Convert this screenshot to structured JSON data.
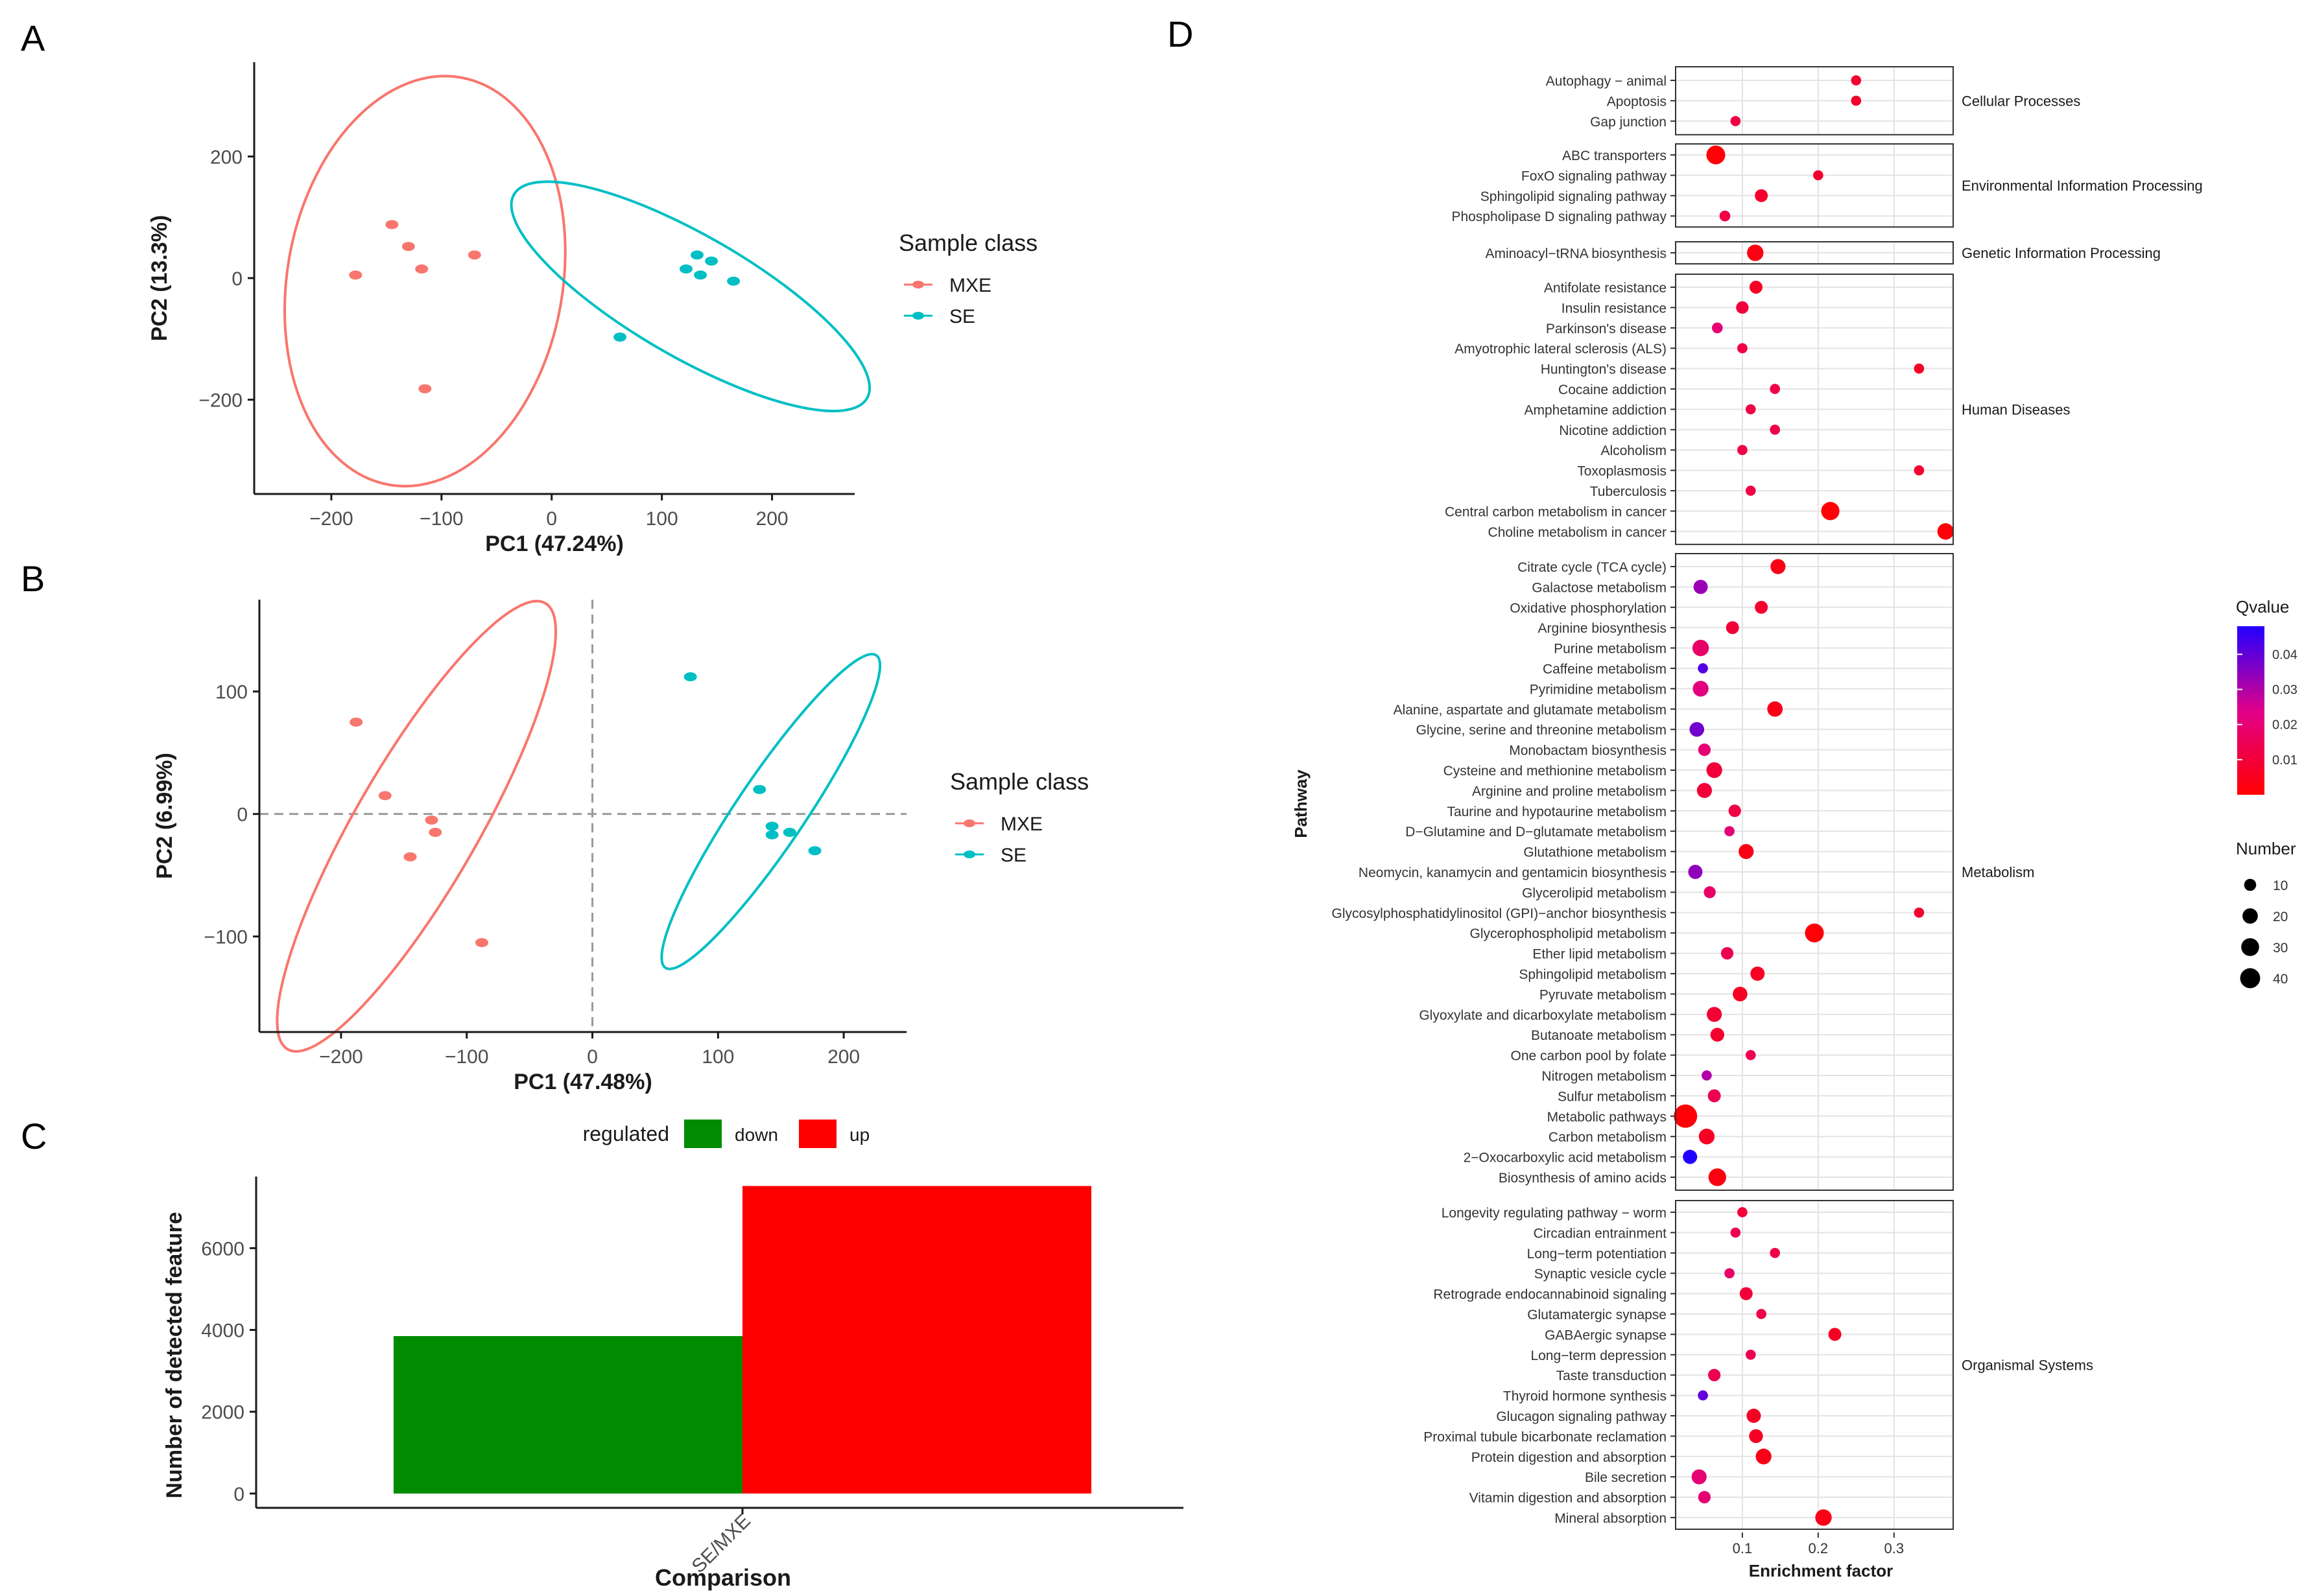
{
  "panels": {
    "A": {
      "label": "A"
    },
    "B": {
      "label": "B"
    },
    "C": {
      "label": "C"
    },
    "D": {
      "label": "D"
    }
  },
  "chart_data": [
    {
      "panel": "A",
      "type": "scatter",
      "xlabel": "PC1 (47.24%)",
      "ylabel": "PC2 (13.3%)",
      "xlim": [
        -270,
        275
      ],
      "ylim": [
        -355,
        355
      ],
      "xticks": [
        -200,
        -100,
        0,
        100,
        200
      ],
      "xtick_labels": [
        "−200",
        "−100",
        "0",
        "100",
        "200"
      ],
      "yticks": [
        -200,
        0,
        200
      ],
      "ytick_labels": [
        "−200",
        "0",
        "200"
      ],
      "legend": {
        "title": "Sample class",
        "position": "right"
      },
      "series": [
        {
          "name": "MXE",
          "color": "#F8766D",
          "points": [
            [
              -145,
              88
            ],
            [
              -130,
              52
            ],
            [
              -118,
              15
            ],
            [
              -178,
              5
            ],
            [
              -70,
              38
            ],
            [
              -115,
              -182
            ]
          ],
          "ellipse": {
            "center": [
              -115,
              -5
            ],
            "rx": 125,
            "ry": 340,
            "angle": 170
          }
        },
        {
          "name": "SE",
          "color": "#00BFC4",
          "points": [
            [
              132,
              38
            ],
            [
              145,
              28
            ],
            [
              122,
              15
            ],
            [
              135,
              5
            ],
            [
              165,
              -5
            ],
            [
              62,
              -97
            ]
          ],
          "ellipse": {
            "center": [
              126,
              -30
            ],
            "rx": 185,
            "ry": 100,
            "angle": -30
          }
        }
      ]
    },
    {
      "panel": "B",
      "type": "scatter",
      "xlabel": "PC1 (47.48%)",
      "ylabel": "PC2 (6.99%)",
      "xlim": [
        -265,
        250
      ],
      "ylim": [
        -178,
        175
      ],
      "xticks": [
        -200,
        -100,
        0,
        100,
        200
      ],
      "xtick_labels": [
        "−200",
        "−100",
        "0",
        "100",
        "200"
      ],
      "yticks": [
        -100,
        0,
        100
      ],
      "ytick_labels": [
        "−100",
        "0",
        "100"
      ],
      "reference_lines": {
        "x": 0,
        "y": 0,
        "style": "dashed"
      },
      "legend": {
        "title": "Sample class",
        "position": "right"
      },
      "series": [
        {
          "name": "MXE",
          "color": "#F8766D",
          "points": [
            [
              -188,
              75
            ],
            [
              -165,
              15
            ],
            [
              -128,
              -5
            ],
            [
              -125,
              -15
            ],
            [
              -145,
              -35
            ],
            [
              -88,
              -105
            ]
          ],
          "ellipse": {
            "center": [
              -140,
              -10
            ],
            "rx": 205,
            "ry": 50,
            "angle": 60
          }
        },
        {
          "name": "SE",
          "color": "#00BFC4",
          "points": [
            [
              78,
              112
            ],
            [
              133,
              20
            ],
            [
              143,
              -10
            ],
            [
              157,
              -15
            ],
            [
              143,
              -17
            ],
            [
              177,
              -30
            ]
          ],
          "ellipse": {
            "center": [
              142,
              2
            ],
            "rx": 150,
            "ry": 28,
            "angle": 56
          }
        }
      ]
    },
    {
      "panel": "C",
      "type": "bar",
      "xlabel": "Comparison",
      "ylabel": "Number of detected feature",
      "categories": [
        "SE/MXE"
      ],
      "ylim": [
        -350,
        7750
      ],
      "yticks": [
        0,
        2000,
        4000,
        6000
      ],
      "legend": {
        "title": "regulated",
        "position": "top"
      },
      "series": [
        {
          "name": "down",
          "color": "#008B00",
          "values": [
            3850
          ]
        },
        {
          "name": "up",
          "color": "#FF0000",
          "values": [
            7520
          ]
        }
      ]
    },
    {
      "panel": "D",
      "type": "scatter",
      "xlabel": "Enrichment factor",
      "ylabel": "Pathway",
      "xlim": [
        0.012,
        0.378
      ],
      "xticks": [
        0.1,
        0.2,
        0.3
      ],
      "xtick_labels": [
        "0.1",
        "0.2",
        "0.3"
      ],
      "color_legend": {
        "title": "Qvalue",
        "ticks": [
          "0.04",
          "0.03",
          "0.02",
          "0.01"
        ],
        "tick_values": [
          0.04,
          0.03,
          0.02,
          0.01
        ],
        "low_color": "#FF0000",
        "mid_color": "#E0008A",
        "high_color": "#2200FF"
      },
      "size_legend": {
        "title": "Number",
        "values": [
          10,
          20,
          30,
          40
        ]
      },
      "groups": [
        {
          "name": "Cellular Processes",
          "pathways": [
            {
              "name": "Autophagy − animal",
              "x": 0.25,
              "number": 4,
              "q": 0.008
            },
            {
              "name": "Apoptosis",
              "x": 0.25,
              "number": 4,
              "q": 0.008
            },
            {
              "name": "Gap junction",
              "x": 0.091,
              "number": 4,
              "q": 0.012
            }
          ]
        },
        {
          "name": "Environmental Information Processing",
          "pathways": [
            {
              "name": "ABC transporters",
              "x": 0.065,
              "number": 26,
              "q": 0.001
            },
            {
              "name": "FoxO signaling pathway",
              "x": 0.2,
              "number": 4,
              "q": 0.008
            },
            {
              "name": "Sphingolipid signaling pathway",
              "x": 0.125,
              "number": 9,
              "q": 0.008
            },
            {
              "name": "Phospholipase D signaling pathway",
              "x": 0.077,
              "number": 5,
              "q": 0.012
            }
          ]
        },
        {
          "name": "Genetic Information Processing",
          "pathways": [
            {
              "name": "Aminoacyl−tRNA biosynthesis",
              "x": 0.117,
              "number": 18,
              "q": 0.003
            }
          ]
        },
        {
          "name": "Human Diseases",
          "pathways": [
            {
              "name": "Antifolate resistance",
              "x": 0.118,
              "number": 9,
              "q": 0.006
            },
            {
              "name": "Insulin resistance",
              "x": 0.1,
              "number": 8,
              "q": 0.01
            },
            {
              "name": "Parkinson's disease",
              "x": 0.067,
              "number": 5,
              "q": 0.02
            },
            {
              "name": "Amyotrophic lateral sclerosis (ALS)",
              "x": 0.1,
              "number": 4,
              "q": 0.012
            },
            {
              "name": "Huntington's disease",
              "x": 0.333,
              "number": 4,
              "q": 0.006
            },
            {
              "name": "Cocaine addiction",
              "x": 0.143,
              "number": 4,
              "q": 0.012
            },
            {
              "name": "Amphetamine addiction",
              "x": 0.111,
              "number": 4,
              "q": 0.012
            },
            {
              "name": "Nicotine addiction",
              "x": 0.143,
              "number": 4,
              "q": 0.012
            },
            {
              "name": "Alcoholism",
              "x": 0.1,
              "number": 4,
              "q": 0.012
            },
            {
              "name": "Toxoplasmosis",
              "x": 0.333,
              "number": 4,
              "q": 0.008
            },
            {
              "name": "Tuberculosis",
              "x": 0.111,
              "number": 4,
              "q": 0.012
            },
            {
              "name": "Central carbon metabolism in cancer",
              "x": 0.216,
              "number": 24,
              "q": 0.001
            },
            {
              "name": "Choline metabolism in cancer",
              "x": 0.368,
              "number": 18,
              "q": 0.001
            }
          ]
        },
        {
          "name": "Metabolism",
          "pathways": [
            {
              "name": "Citrate cycle (TCA cycle)",
              "x": 0.147,
              "number": 14,
              "q": 0.004
            },
            {
              "name": "Galactose metabolism",
              "x": 0.045,
              "number": 12,
              "q": 0.033
            },
            {
              "name": "Oxidative phosphorylation",
              "x": 0.125,
              "number": 9,
              "q": 0.008
            },
            {
              "name": "Arginine biosynthesis",
              "x": 0.087,
              "number": 9,
              "q": 0.01
            },
            {
              "name": "Purine metabolism",
              "x": 0.045,
              "number": 18,
              "q": 0.018
            },
            {
              "name": "Caffeine metabolism",
              "x": 0.048,
              "number": 4,
              "q": 0.042
            },
            {
              "name": "Pyrimidine metabolism",
              "x": 0.045,
              "number": 16,
              "q": 0.022
            },
            {
              "name": "Alanine, aspartate and glutamate metabolism",
              "x": 0.143,
              "number": 15,
              "q": 0.004
            },
            {
              "name": "Glycine, serine and threonine metabolism",
              "x": 0.04,
              "number": 13,
              "q": 0.038
            },
            {
              "name": "Monobactam biosynthesis",
              "x": 0.05,
              "number": 8,
              "q": 0.02
            },
            {
              "name": "Cysteine and methionine metabolism",
              "x": 0.063,
              "number": 16,
              "q": 0.01
            },
            {
              "name": "Arginine and proline metabolism",
              "x": 0.05,
              "number": 14,
              "q": 0.01
            },
            {
              "name": "Taurine and hypotaurine metabolism",
              "x": 0.09,
              "number": 8,
              "q": 0.012
            },
            {
              "name": "D−Glutamine and D−glutamate metabolism",
              "x": 0.083,
              "number": 4,
              "q": 0.02
            },
            {
              "name": "Glutathione metabolism",
              "x": 0.105,
              "number": 14,
              "q": 0.004
            },
            {
              "name": "Neomycin, kanamycin and gentamicin biosynthesis",
              "x": 0.038,
              "number": 12,
              "q": 0.034
            },
            {
              "name": "Glycerolipid metabolism",
              "x": 0.057,
              "number": 7,
              "q": 0.018
            },
            {
              "name": "Glycosylphosphatidylinositol (GPI)−anchor biosynthesis",
              "x": 0.333,
              "number": 4,
              "q": 0.008
            },
            {
              "name": "Glycerophospholipid metabolism",
              "x": 0.195,
              "number": 26,
              "q": 0.001
            },
            {
              "name": "Ether lipid metabolism",
              "x": 0.08,
              "number": 8,
              "q": 0.014
            },
            {
              "name": "Sphingolipid metabolism",
              "x": 0.12,
              "number": 12,
              "q": 0.006
            },
            {
              "name": "Pyruvate metabolism",
              "x": 0.097,
              "number": 13,
              "q": 0.006
            },
            {
              "name": "Glyoxylate and dicarboxylate metabolism",
              "x": 0.063,
              "number": 14,
              "q": 0.009
            },
            {
              "name": "Butanoate metabolism",
              "x": 0.067,
              "number": 11,
              "q": 0.008
            },
            {
              "name": "One carbon pool by folate",
              "x": 0.111,
              "number": 4,
              "q": 0.014
            },
            {
              "name": "Nitrogen metabolism",
              "x": 0.053,
              "number": 4,
              "q": 0.03
            },
            {
              "name": "Sulfur metabolism",
              "x": 0.063,
              "number": 9,
              "q": 0.014
            },
            {
              "name": "Metabolic pathways",
              "x": 0.025,
              "number": 45,
              "q": 0.001
            },
            {
              "name": "Carbon metabolism",
              "x": 0.053,
              "number": 16,
              "q": 0.006
            },
            {
              "name": "2−Oxocarboxylic acid metabolism",
              "x": 0.031,
              "number": 12,
              "q": 0.048
            },
            {
              "name": "Biosynthesis of amino acids",
              "x": 0.067,
              "number": 22,
              "q": 0.003
            }
          ]
        },
        {
          "name": "Organismal Systems",
          "pathways": [
            {
              "name": "Longevity regulating pathway − worm",
              "x": 0.1,
              "number": 4,
              "q": 0.01
            },
            {
              "name": "Circadian entrainment",
              "x": 0.091,
              "number": 4,
              "q": 0.014
            },
            {
              "name": "Long−term potentiation",
              "x": 0.143,
              "number": 4,
              "q": 0.012
            },
            {
              "name": "Synaptic vesicle cycle",
              "x": 0.083,
              "number": 4,
              "q": 0.018
            },
            {
              "name": "Retrograde endocannabinoid signaling",
              "x": 0.105,
              "number": 9,
              "q": 0.01
            },
            {
              "name": "Glutamatergic synapse",
              "x": 0.125,
              "number": 4,
              "q": 0.012
            },
            {
              "name": "GABAergic synapse",
              "x": 0.222,
              "number": 9,
              "q": 0.006
            },
            {
              "name": "Long−term depression",
              "x": 0.111,
              "number": 4,
              "q": 0.014
            },
            {
              "name": "Taste transduction",
              "x": 0.063,
              "number": 8,
              "q": 0.014
            },
            {
              "name": "Thyroid hormone synthesis",
              "x": 0.048,
              "number": 4,
              "q": 0.04
            },
            {
              "name": "Glucagon signaling pathway",
              "x": 0.115,
              "number": 12,
              "q": 0.006
            },
            {
              "name": "Proximal tubule bicarbonate reclamation",
              "x": 0.118,
              "number": 11,
              "q": 0.006
            },
            {
              "name": "Protein digestion and absorption",
              "x": 0.128,
              "number": 16,
              "q": 0.004
            },
            {
              "name": "Bile secretion",
              "x": 0.043,
              "number": 14,
              "q": 0.02
            },
            {
              "name": "Vitamin digestion and absorption",
              "x": 0.05,
              "number": 8,
              "q": 0.02
            },
            {
              "name": "Mineral absorption",
              "x": 0.207,
              "number": 18,
              "q": 0.004
            }
          ]
        }
      ]
    }
  ]
}
